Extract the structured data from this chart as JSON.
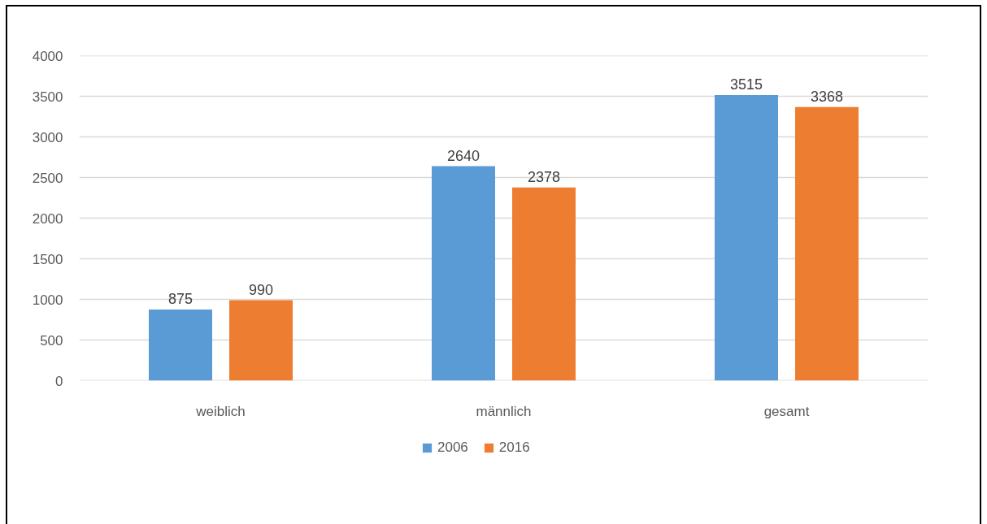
{
  "chart_data": {
    "type": "bar",
    "categories": [
      "weiblich",
      "männlich",
      "gesamt"
    ],
    "series": [
      {
        "name": "2006",
        "color": "#5b9bd5",
        "values": [
          875,
          2640,
          3515
        ]
      },
      {
        "name": "2016",
        "color": "#ed7d31",
        "values": [
          990,
          2378,
          3368
        ]
      }
    ],
    "ylim": [
      0,
      4000
    ],
    "yticks": [
      0,
      500,
      1000,
      1500,
      2000,
      2500,
      3000,
      3500,
      4000
    ],
    "grid": "y",
    "legend": "bottom",
    "data_labels": true
  }
}
